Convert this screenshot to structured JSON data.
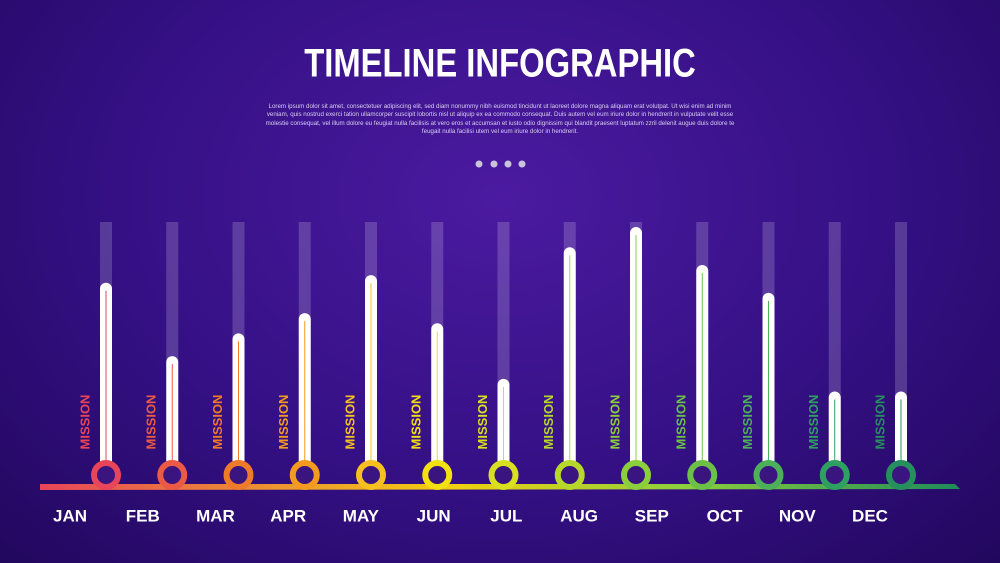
{
  "chart_data": {
    "type": "bar",
    "title": "TIMELINE INFOGRAPHIC",
    "subtitle": "Lorem ipsum dolor sit amet, consectetuer adipiscing elit, sed diam nonummy nibh euismod tincidunt ut laoreet dolore magna aliquam erat volutpat. Ut wisi enim ad minim veniam, quis nostrud exerci tation ullamcorper suscipit lobortis nisl ut aliquip ex ea commodo consequat. Duis autem vel eum iriure dolor in hendrerit in vulputate velit esse molestie consequat, vel illum dolore eu feugiat nulla facilisis at vero eros et accumsan et iusto odio dignissim qui blandit praesent luptatum zzril delenit augue duis dolore te feugait nulla facilisi utem vel eum iriure dolor in hendrerit.",
    "categories": [
      "MISSION",
      "MISSION",
      "MISSION",
      "MISSION",
      "MISSION",
      "MISSION",
      "MISSION",
      "MISSION",
      "MISSION",
      "MISSION",
      "MISSION",
      "MISSION",
      "MISSION"
    ],
    "values": [
      76,
      47,
      56,
      64,
      79,
      60,
      38,
      90,
      98,
      83,
      72,
      33,
      33
    ],
    "colors": [
      "#e8455a",
      "#ea5a45",
      "#ef7a2a",
      "#f59a20",
      "#f5c020",
      "#f2e010",
      "#d8e020",
      "#b6d82a",
      "#8ccf3c",
      "#6cc048",
      "#4cb05a",
      "#2fa062",
      "#25905e"
    ],
    "ylim": [
      0,
      100
    ],
    "months": [
      "JAN",
      "FEB",
      "MAR",
      "APR",
      "MAY",
      "JUN",
      "JUL",
      "AUG",
      "SEP",
      "OCT",
      "NOV",
      "DEC"
    ]
  }
}
